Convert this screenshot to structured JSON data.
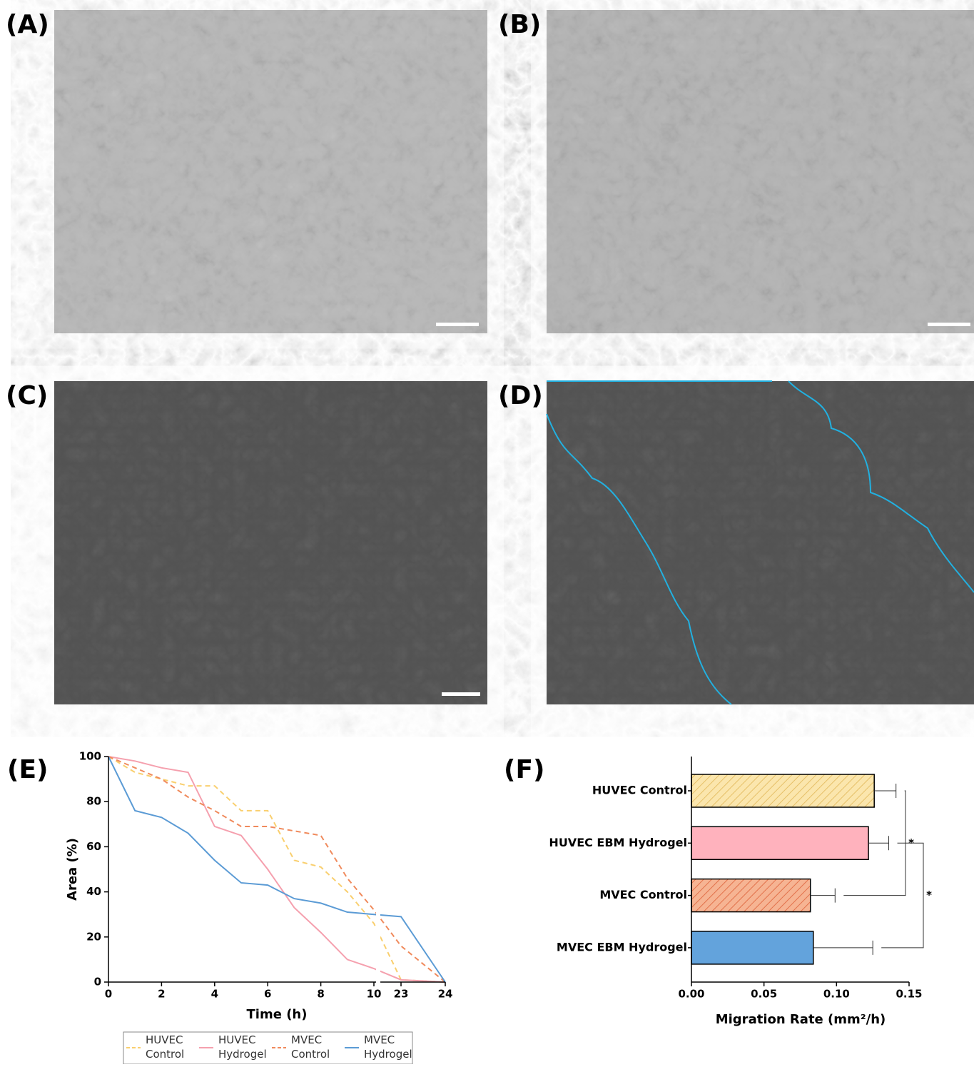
{
  "panels": [
    "(A)",
    "(B)",
    "(C)",
    "(D)"
  ],
  "chart_data": [
    {
      "type": "line",
      "label": "(E)",
      "x_label": "Time (h)",
      "y_label": "Area (%)",
      "x": [
        0,
        1,
        2,
        3,
        4,
        5,
        6,
        7,
        8,
        9,
        10,
        23,
        24
      ],
      "xlim": [
        0,
        24
      ],
      "xbreak": [
        10,
        23
      ],
      "xticks": [
        0,
        2,
        4,
        6,
        8,
        10,
        23,
        24
      ],
      "ylim": [
        0,
        100
      ],
      "yticks": [
        0,
        20,
        40,
        60,
        80,
        100
      ],
      "series": [
        {
          "name": "HUVEC Control",
          "color": "#f9cf6e",
          "line_style": "dashed",
          "values": [
            100,
            93,
            90,
            87,
            87,
            76,
            76,
            54,
            51,
            40,
            26,
            1,
            0
          ]
        },
        {
          "name": "HUVEC Hydrogel",
          "color": "#f5a0ae",
          "line_style": "solid",
          "values": [
            100,
            98,
            95,
            93,
            69,
            65,
            50,
            33,
            22,
            10,
            6,
            1,
            0
          ]
        },
        {
          "name": "MVEC Control",
          "color": "#f08a5c",
          "line_style": "dashed",
          "values": [
            100,
            95,
            90,
            82,
            76,
            69,
            69,
            67,
            65,
            46,
            32,
            16,
            0
          ]
        },
        {
          "name": "MVEC Hydrogel",
          "color": "#5b9bd5",
          "line_style": "solid",
          "values": [
            100,
            76,
            73,
            66,
            54,
            44,
            43,
            37,
            35,
            31,
            30,
            29,
            0
          ]
        }
      ]
    },
    {
      "type": "hbar",
      "label": "(F)",
      "x_label": "Migration Rate (mm²/h)",
      "categories": [
        "HUVEC Control",
        "HUVEC EBM Hydrogel",
        "MVEC Control",
        "MVEC EBM Hydrogel"
      ],
      "values": [
        0.126,
        0.122,
        0.082,
        0.084
      ],
      "errors": [
        0.015,
        0.014,
        0.017,
        0.041
      ],
      "colors": [
        "#fbe6ad",
        "#ffb2bd",
        "#f6b493",
        "#63a3dc"
      ],
      "hatch": [
        true,
        false,
        true,
        false
      ],
      "xlim": [
        0,
        0.15
      ],
      "xticks": [
        {
          "value": 0,
          "label": "0.00"
        },
        {
          "value": 0.05,
          "label": "0.05"
        },
        {
          "value": 0.1,
          "label": "0.10"
        },
        {
          "value": 0.15,
          "label": "0.15"
        }
      ],
      "annotations": [
        {
          "text": "*",
          "between": [
            0,
            2
          ]
        },
        {
          "text": "*",
          "between": [
            1,
            3
          ]
        }
      ]
    }
  ]
}
